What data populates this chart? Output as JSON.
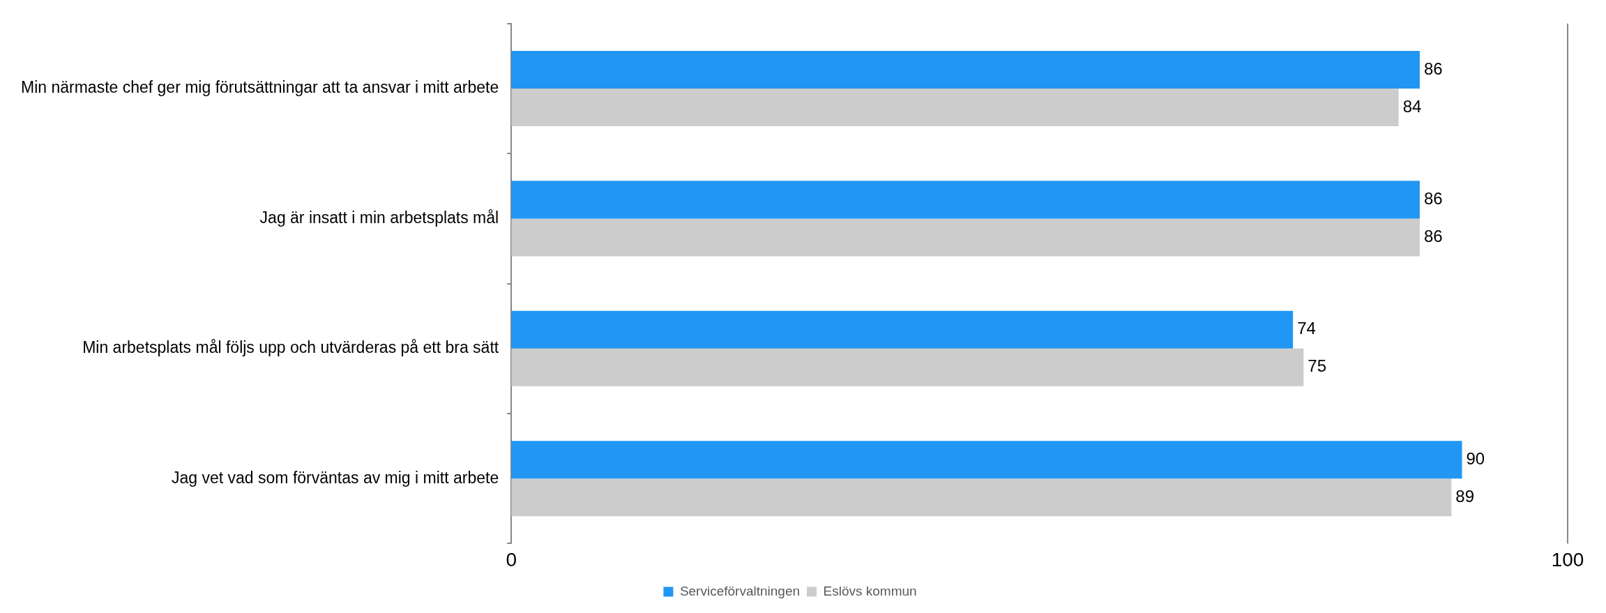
{
  "chart_data": {
    "type": "bar",
    "orientation": "horizontal",
    "categories": [
      "Min närmaste chef ger mig förutsättningar att ta ansvar i mitt arbete",
      "Jag är insatt i min arbetsplats mål",
      "Min arbetsplats mål följs upp och utvärderas på ett bra sätt",
      "Jag vet vad som förväntas av mig i mitt arbete"
    ],
    "series": [
      {
        "name": "Serviceförvaltningen",
        "color": "#2196f3",
        "values": [
          86,
          86,
          74,
          90
        ]
      },
      {
        "name": "Eslövs kommun",
        "color": "#cccccc",
        "values": [
          84,
          86,
          75,
          89
        ]
      }
    ],
    "xlim": [
      0,
      100
    ],
    "xticks": [
      0,
      100
    ],
    "data_labels": true,
    "grid": false,
    "legend": "bottom"
  }
}
